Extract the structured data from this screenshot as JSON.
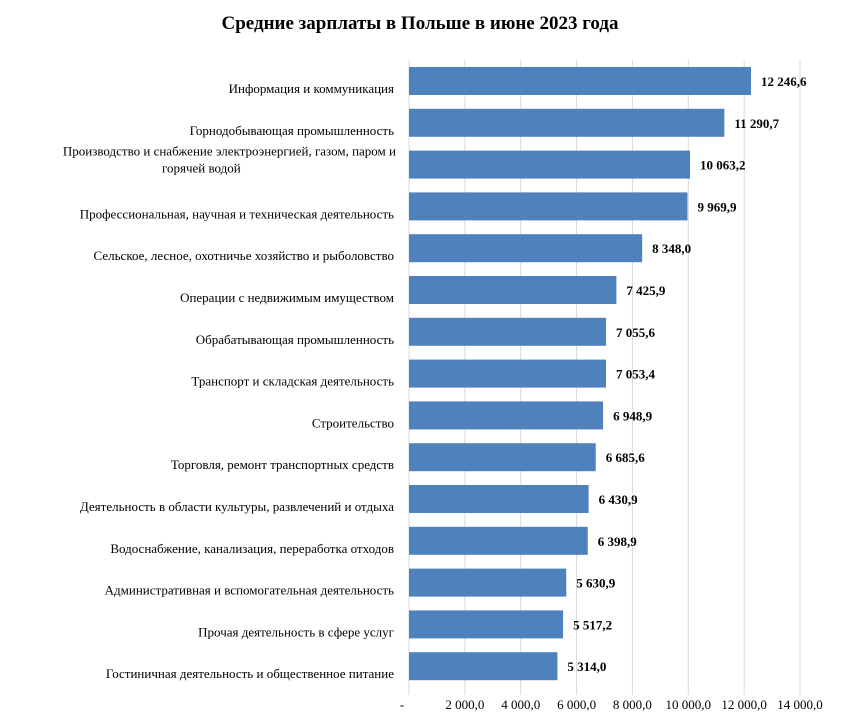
{
  "chart_data": {
    "type": "bar",
    "orientation": "horizontal",
    "title": "Средние зарплаты  в Польше в июне 2023 года",
    "categories": [
      [
        "Информация и коммуникация"
      ],
      [
        "Горнодобывающая промышленность"
      ],
      [
        "Производство и снабжение электроэнергией,  газом, паром и",
        "горячей водой"
      ],
      [
        "Профессиональная, научная и техническая деятельность"
      ],
      [
        "Сельское, лесное, охотничье хозяйство и рыболовство"
      ],
      [
        "Операции  с недвижимым имуществом"
      ],
      [
        "Обрабатывающая промышленность"
      ],
      [
        "Транспорт и складская деятельность"
      ],
      [
        "Строительство"
      ],
      [
        "Торговля, ремонт транспортных  средств"
      ],
      [
        "Деятельность в области культуры, развлечений и отдыха"
      ],
      [
        "Водоснабжение, канализация,  переработка отходов"
      ],
      [
        "Административная и вспомогательная деятельность"
      ],
      [
        "Прочая деятельность в сфере услуг"
      ],
      [
        "Гостиничная деятельность и общественное питание"
      ]
    ],
    "values": [
      12246.6,
      11290.7,
      10063.2,
      9969.9,
      8348.0,
      7425.9,
      7055.6,
      7053.4,
      6948.9,
      6685.6,
      6430.9,
      6398.9,
      5630.9,
      5517.2,
      5314.0
    ],
    "value_labels": [
      "12 246,6",
      "11 290,7",
      "10 063,2",
      "9 969,9",
      "8 348,0",
      "7 425,9",
      "7 055,6",
      "7 053,4",
      "6 948,9",
      "6 685,6",
      "6 430,9",
      "6 398,9",
      "5 630,9",
      "5 517,2",
      "5 314,0"
    ],
    "xlim": [
      0,
      14000
    ],
    "xticks": [
      0,
      2000,
      4000,
      6000,
      8000,
      10000,
      12000,
      14000
    ],
    "xtick_labels": [
      "-",
      "2 000,0",
      "4 000,0",
      "6 000,0",
      "8 000,0",
      "10 000,0",
      "12 000,0",
      "14 000,0"
    ],
    "grid": true,
    "legend": "none",
    "colors": {
      "bar": "#4f81bd",
      "grid": "#d9d9d9"
    }
  }
}
